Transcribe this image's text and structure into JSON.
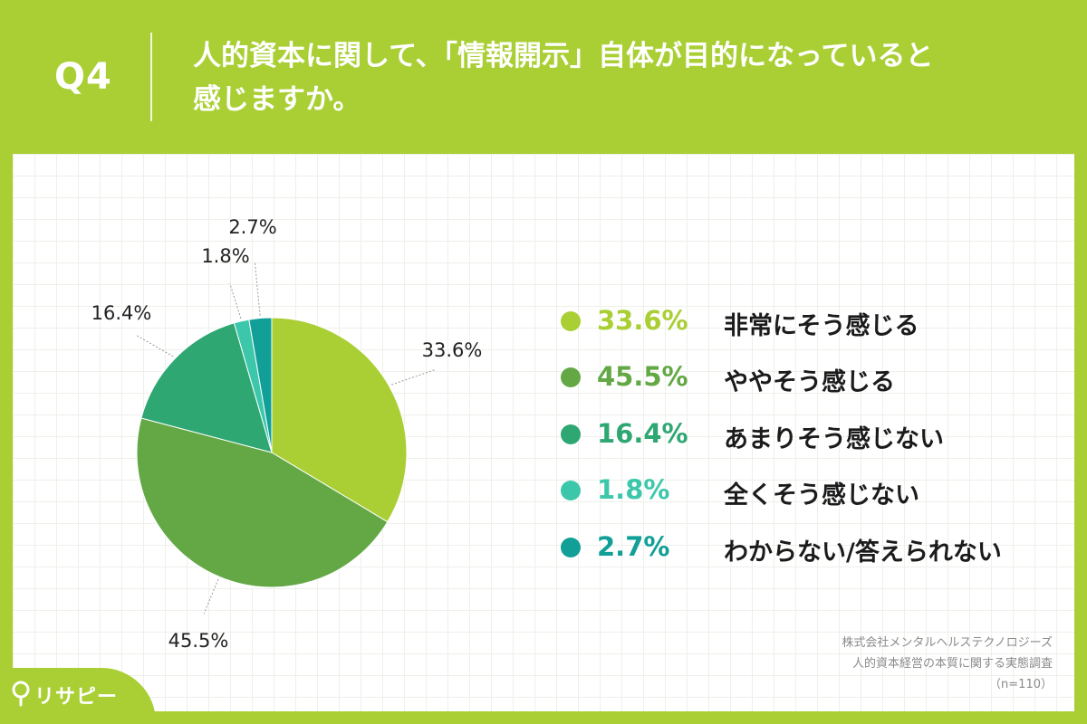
{
  "header": {
    "qnum": "Q4",
    "question_line1": "人的資本に関して、「情報開示」自体が目的になっていると",
    "question_line2": "感じますか。"
  },
  "chart_data": {
    "type": "pie",
    "title": "",
    "categories": [
      "非常にそう感じる",
      "ややそう感じる",
      "あまりそう感じない",
      "全くそう感じない",
      "わからない/答えられない"
    ],
    "values": [
      33.6,
      45.5,
      16.4,
      1.8,
      2.7
    ],
    "value_labels": [
      "33.6%",
      "45.5%",
      "16.4%",
      "1.8%",
      "2.7%"
    ],
    "colors": [
      "#a9cf34",
      "#63a845",
      "#2ea773",
      "#3cc7ab",
      "#129f98"
    ],
    "legend_pct_colors": [
      "#a9cf34",
      "#63a845",
      "#2ea773",
      "#3cc7ab",
      "#129f98"
    ],
    "start_angle_deg": 0,
    "direction": "clockwise",
    "legend_placement": "right"
  },
  "legend": [
    {
      "pct": "33.6%",
      "label": "非常にそう感じる"
    },
    {
      "pct": "45.5%",
      "label": "ややそう感じる"
    },
    {
      "pct": "16.4%",
      "label": "あまりそう感じない"
    },
    {
      "pct": "1.8%",
      "label": "全くそう感じない"
    },
    {
      "pct": "2.7%",
      "label": "わからない/答えられない"
    }
  ],
  "source": {
    "line1": "株式会社メンタルヘルステクノロジーズ",
    "line2": "人的資本経営の本質に関する実態調査",
    "line3": "（n=110）"
  },
  "brand": {
    "name": "リサピー"
  }
}
